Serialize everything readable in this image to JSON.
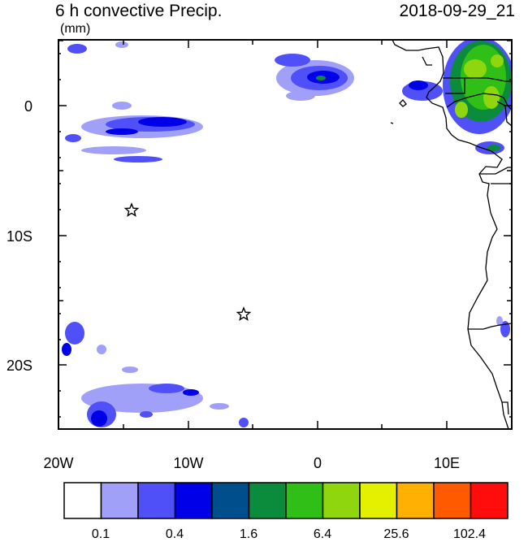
{
  "title": {
    "left": "6 h convective Precip.",
    "right": "2018-09-29_21",
    "units": "(mm)"
  },
  "map": {
    "lon_range": [
      -20,
      15
    ],
    "lat_range": [
      -25,
      5
    ],
    "x_tick_labels": [
      "20W",
      "10W",
      "0",
      "10E"
    ],
    "y_tick_labels": [
      "0",
      "10S",
      "20S"
    ],
    "markers": [
      {
        "name": "star",
        "lon": -14.3,
        "lat": -8.0
      },
      {
        "name": "star",
        "lon": -5.7,
        "lat": -16.0
      }
    ]
  },
  "colorbar": {
    "colors": [
      "#ffffff",
      "#a0a0f8",
      "#5050f8",
      "#0000e8",
      "#004f8c",
      "#0b8c3c",
      "#2fbf17",
      "#8fd60e",
      "#e3f100",
      "#ffb000",
      "#ff5a00",
      "#ff0d0d"
    ],
    "labels": [
      "0.1",
      "0.4",
      "1.6",
      "6.4",
      "25.6",
      "102.4"
    ]
  }
}
